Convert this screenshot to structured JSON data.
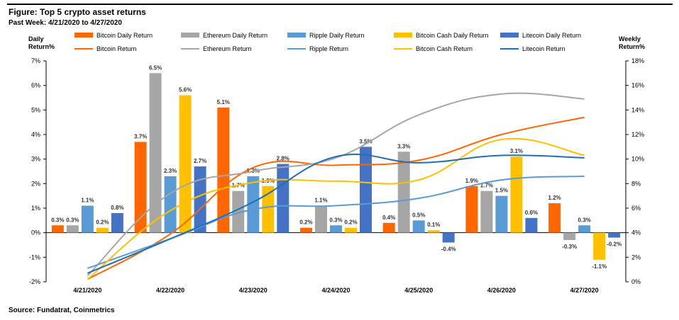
{
  "header": {
    "title": "Figure: Top 5 crypto asset returns",
    "subtitle": "Past Week: 4/21/2020 to 4/27/2020"
  },
  "footer": {
    "source": "Source: Fundatrat, Coinmetrics"
  },
  "colors": {
    "bitcoin": "#FF6600",
    "ethereum": "#A6A6A6",
    "ripple": "#5B9BD5",
    "bitcoin_cash": "#FFC000",
    "litecoin": "#4472C4",
    "litecoin_line": "#1F6FB5",
    "axis": "#000000"
  },
  "chart_data": {
    "type": "bar",
    "categories": [
      "4/21/2020",
      "4/22/2020",
      "4/23/2020",
      "4/24/2020",
      "4/25/2020",
      "4/26/2020",
      "4/27/2020"
    ],
    "y_left": {
      "label_line1": "Daily",
      "label_line2": "Return%",
      "range": [
        -2,
        7
      ],
      "ticks": [
        -2,
        -1,
        0,
        1,
        2,
        3,
        4,
        5,
        6,
        7
      ],
      "tick_labels": [
        "-2%",
        "-1%",
        "0%",
        "1%",
        "2%",
        "3%",
        "4%",
        "5%",
        "6%",
        "7%"
      ]
    },
    "y_right": {
      "label_line1": "Weekly",
      "label_line2": "Return%",
      "range": [
        0,
        18
      ],
      "ticks": [
        0,
        2,
        4,
        6,
        8,
        10,
        12,
        14,
        16,
        18
      ],
      "tick_labels": [
        "0%",
        "2%",
        "4%",
        "6%",
        "8%",
        "10%",
        "12%",
        "14%",
        "16%",
        "18%"
      ]
    },
    "bar_series": [
      {
        "name": "Bitcoin Daily Return",
        "color_key": "bitcoin",
        "values": [
          0.3,
          3.7,
          5.1,
          0.2,
          0.4,
          1.9,
          1.2
        ],
        "labels": [
          "0.3%",
          "3.7%",
          "5.1%",
          "0.2%",
          "0.4%",
          "1.9%",
          "1.2%"
        ]
      },
      {
        "name": "Ethereum Daily Return",
        "color_key": "ethereum",
        "values": [
          0.3,
          6.5,
          1.7,
          1.1,
          3.3,
          1.7,
          -0.3
        ],
        "labels": [
          "0.3%",
          "6.5%",
          "1.7%",
          "1.1%",
          "3.3%",
          "1.7%",
          "-0.3%"
        ]
      },
      {
        "name": "Ripple Daily Return",
        "color_key": "ripple",
        "values": [
          1.1,
          2.3,
          2.3,
          0.3,
          0.5,
          1.5,
          0.3
        ],
        "labels": [
          "1.1%",
          "2.3%",
          "2.3%",
          "0.3%",
          "0.5%",
          "1.5%",
          "0.3%"
        ]
      },
      {
        "name": "Bitcoin Cash Daily Return",
        "color_key": "bitcoin_cash",
        "values": [
          0.2,
          5.6,
          1.9,
          0.2,
          0.1,
          3.1,
          -1.1
        ],
        "labels": [
          "0.2%",
          "5.6%",
          "1.9%",
          "0.2%",
          "0.1%",
          "3.1%",
          "-1.1%"
        ]
      },
      {
        "name": "Litecoin Daily Return",
        "color_key": "litecoin",
        "values": [
          0.8,
          2.7,
          2.8,
          3.5,
          -0.4,
          0.6,
          -0.2
        ],
        "labels": [
          "0.8%",
          "2.7%",
          "2.8%",
          "3.5%",
          "-0.4%",
          "0.6%",
          "-0.2%"
        ]
      }
    ],
    "line_series": [
      {
        "name": "Bitcoin Return",
        "color_key": "bitcoin",
        "values": [
          0.2,
          3.9,
          9.3,
          9.5,
          9.9,
          12.0,
          13.4
        ]
      },
      {
        "name": "Ethereum Return",
        "color_key": "ethereum",
        "values": [
          0.5,
          7.2,
          9.0,
          10.1,
          13.6,
          15.3,
          14.9
        ]
      },
      {
        "name": "Ripple Return",
        "color_key": "ripple",
        "values": [
          1.1,
          3.5,
          5.9,
          6.2,
          6.8,
          8.3,
          8.6
        ]
      },
      {
        "name": "Bitcoin Cash Return",
        "color_key": "bitcoin_cash",
        "values": [
          0.2,
          5.8,
          8.1,
          8.2,
          8.3,
          11.6,
          10.3
        ]
      },
      {
        "name": "Litecoin Return",
        "color_key": "litecoin_line",
        "values": [
          0.7,
          3.5,
          6.5,
          10.2,
          9.7,
          10.3,
          10.1
        ]
      }
    ],
    "legend_position": "top",
    "grid": false
  }
}
